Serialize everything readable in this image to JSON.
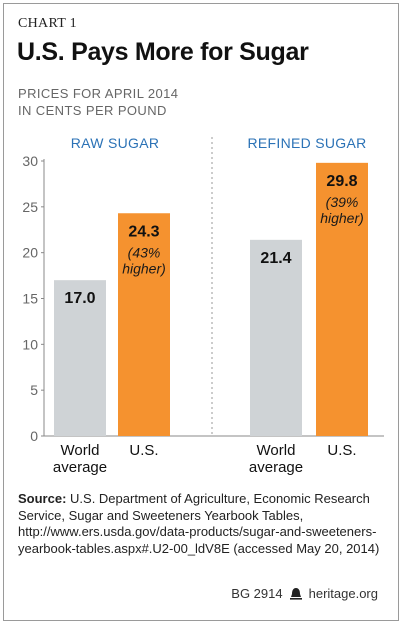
{
  "header": {
    "chart_label": "CHART 1",
    "title": "U.S. Pays More for Sugar",
    "subtitle_line1": "PRICES FOR APRIL 2014",
    "subtitle_line2": "IN CENTS PER POUND"
  },
  "chart_data": {
    "type": "bar",
    "title": "U.S. Pays More for Sugar",
    "ylabel": "",
    "ylim": [
      0,
      30
    ],
    "yticks": [
      0,
      5,
      10,
      15,
      20,
      25,
      30
    ],
    "panels": [
      {
        "name": "RAW SUGAR",
        "categories": [
          [
            "World",
            "average"
          ],
          [
            "U.S."
          ]
        ],
        "values": [
          17.0,
          24.3
        ],
        "labels": [
          "17.0",
          "24.3"
        ],
        "notes": [
          "",
          "(43% higher)"
        ],
        "note_lines": [
          [],
          [
            "(43%",
            "higher)"
          ]
        ],
        "colors": [
          "#cfd3d6",
          "#f5922f"
        ]
      },
      {
        "name": "REFINED SUGAR",
        "categories": [
          [
            "World",
            "average"
          ],
          [
            "U.S."
          ]
        ],
        "values": [
          21.4,
          29.8
        ],
        "labels": [
          "21.4",
          "29.8"
        ],
        "notes": [
          "",
          "(39% higher)"
        ],
        "note_lines": [
          [],
          [
            "(39%",
            "higher)"
          ]
        ],
        "colors": [
          "#cfd3d6",
          "#f5922f"
        ]
      }
    ],
    "grid": false,
    "colors": {
      "world": "#cfd3d6",
      "us": "#f5922f",
      "panel_label": "#2b72b6"
    }
  },
  "source": {
    "label": "Source:",
    "text": " U.S. Department of Agriculture, Economic Research Service, Sugar and Sweeteners Yearbook Tables, http://www.ers.usda.gov/data-products/sugar-and-sweeteners-yearbook-tables.aspx#.U2-00_ldV8E (accessed May 20, 2014)"
  },
  "footer": {
    "code": "BG 2914",
    "site": "heritage.org",
    "icon": "bell-icon"
  }
}
